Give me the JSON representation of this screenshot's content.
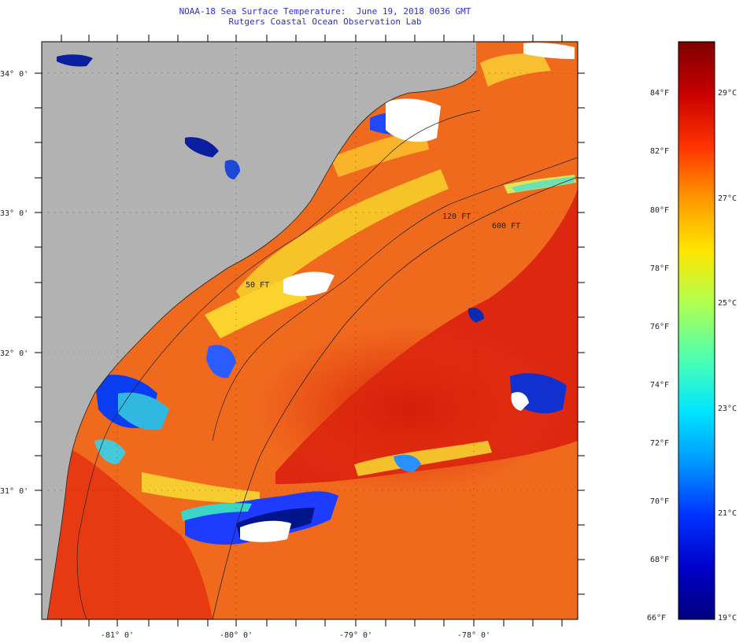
{
  "header": {
    "title": "NOAA-18 Sea Surface Temperature:  June 19, 2018 0036 GMT",
    "subtitle": "Rutgers Coastal Ocean Observation Lab"
  },
  "map": {
    "lat_labels": [
      "34° 0'",
      "33° 0'",
      "32° 0'",
      "31° 0'"
    ],
    "lon_labels": [
      "-81° 0'",
      "-80° 0'",
      "-79° 0'",
      "-78° 0'"
    ],
    "isobath_labels": [
      "50 FT",
      "120 FT",
      "600 FT"
    ],
    "colors": {
      "land": "#b2b2b2",
      "cloud": "#ffffff",
      "warm_background": "#f2641e"
    }
  },
  "colorbar": {
    "fahrenheit_labels": [
      "84°F",
      "82°F",
      "80°F",
      "78°F",
      "76°F",
      "74°F",
      "72°F",
      "70°F",
      "68°F",
      "66°F"
    ],
    "celsius_labels": [
      "29°C",
      "27°C",
      "25°C",
      "23°C",
      "21°C",
      "19°C"
    ],
    "colors": [
      "#00007f",
      "#0000c8",
      "#0032ff",
      "#0096ff",
      "#00e5ff",
      "#4dffb2",
      "#b2ff4d",
      "#ffe500",
      "#ff9600",
      "#ff3200",
      "#c80000",
      "#7f0000"
    ]
  }
}
